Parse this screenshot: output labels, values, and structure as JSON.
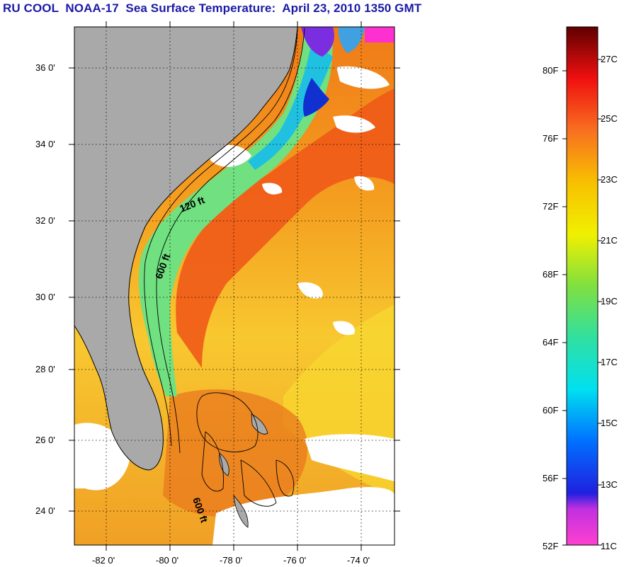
{
  "title": "RU COOL  NOAA-17  Sea Surface Temperature:  April 23, 2010 1350 GMT",
  "map": {
    "lon_range": [
      -83,
      -73
    ],
    "lat_range": [
      23,
      37
    ],
    "lon_ticks": [
      "-82 0'",
      "-80 0'",
      "-78 0'",
      "-76 0'",
      "-74 0'"
    ],
    "lat_ticks": [
      "36 0'",
      "34 0'",
      "32 0'",
      "30 0'",
      "28 0'",
      "26 0'",
      "24 0'"
    ],
    "contour_labels": [
      "120 ft",
      "600 ft",
      "600 ft"
    ],
    "colors": {
      "land": "#a9a9a9",
      "cloud": "#ffffff",
      "coast": "#000000"
    }
  },
  "colorbar": {
    "fahrenheit_labels": [
      "80F",
      "76F",
      "72F",
      "68F",
      "64F",
      "60F",
      "56F",
      "52F"
    ],
    "celsius_labels": [
      "27C",
      "25C",
      "23C",
      "21C",
      "19C",
      "17C",
      "15C",
      "13C",
      "11C"
    ],
    "range_c": [
      11,
      28
    ]
  }
}
